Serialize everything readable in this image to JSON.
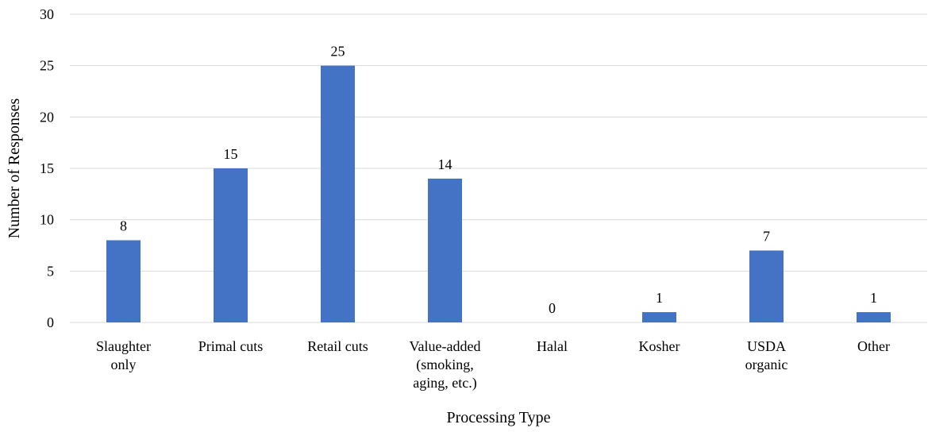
{
  "chart_data": {
    "type": "bar",
    "categories": [
      [
        "Slaughter",
        "only"
      ],
      [
        "Primal cuts"
      ],
      [
        "Retail cuts"
      ],
      [
        "Value-added",
        "(smoking,",
        "aging, etc.)"
      ],
      [
        "Halal"
      ],
      [
        "Kosher"
      ],
      [
        "USDA",
        "organic"
      ],
      [
        "Other"
      ]
    ],
    "values": [
      8,
      15,
      25,
      14,
      0,
      1,
      7,
      1
    ],
    "xlabel": "Processing Type",
    "ylabel": "Number of Responses",
    "ylim": [
      0,
      30
    ],
    "yticks": [
      0,
      5,
      10,
      15,
      20,
      25,
      30
    ],
    "grid": true,
    "bar_color": "#4472c4",
    "grid_color": "#d9d9d9"
  }
}
